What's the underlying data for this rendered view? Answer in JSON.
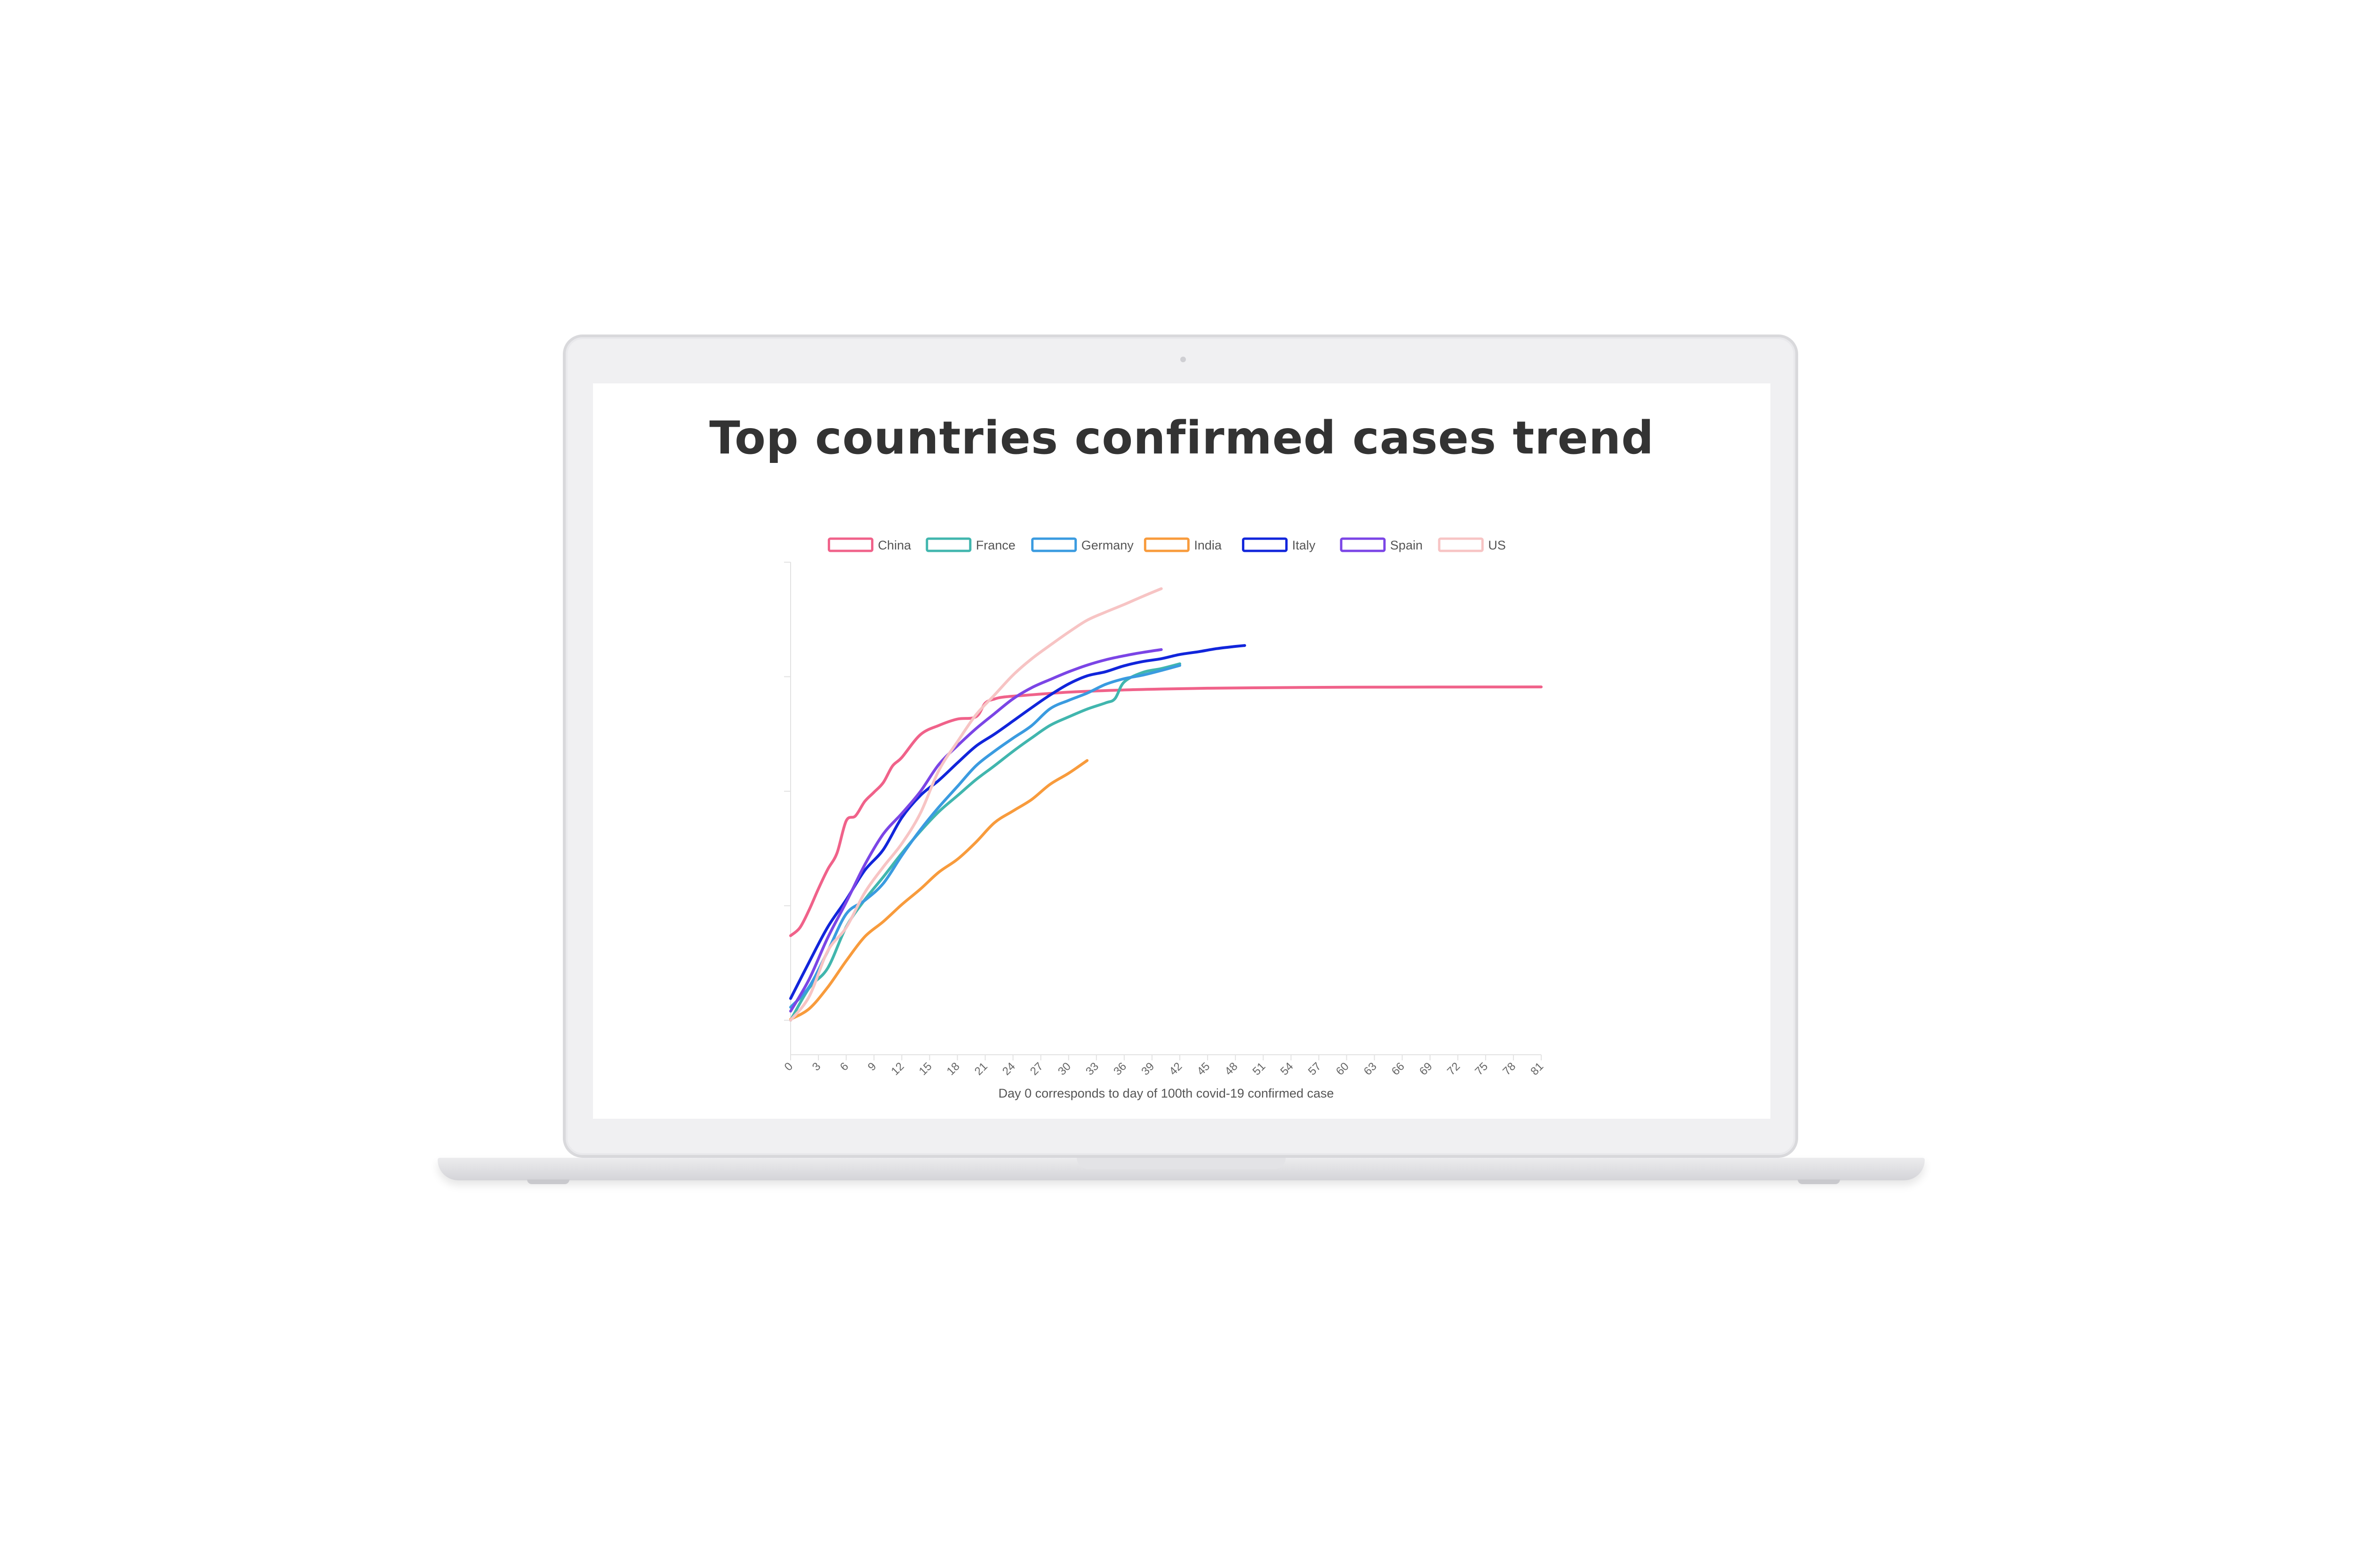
{
  "page_title": "Top countries confirmed cases trend",
  "colors": {
    "China": "#f0628a",
    "France": "#41b6ae",
    "Germany": "#3a9be0",
    "India": "#f89b3c",
    "Italy": "#1125db",
    "Spain": "#7b45e6",
    "US": "#f7c4c4"
  },
  "chart_data": {
    "type": "line",
    "title": "",
    "xlabel": "Day 0 corresponds to day of 100th covid-19 confirmed case",
    "ylabel": "",
    "y_scale": "log",
    "xlim": [
      0,
      81
    ],
    "ylim": [
      50,
      1000000
    ],
    "x_ticks": [
      0,
      3,
      6,
      9,
      12,
      15,
      18,
      21,
      24,
      27,
      30,
      33,
      36,
      39,
      42,
      45,
      48,
      51,
      54,
      57,
      60,
      63,
      66,
      69,
      72,
      75,
      78,
      81
    ],
    "legend_position": "top",
    "grid": false,
    "series": [
      {
        "name": "China",
        "x": [
          0,
          1,
          2,
          3,
          4,
          5,
          6,
          7,
          8,
          9,
          10,
          11,
          12,
          14,
          16,
          18,
          20,
          21,
          22,
          23,
          25,
          30,
          35,
          40,
          45,
          50,
          55,
          60,
          65,
          70,
          75,
          81
        ],
        "y": [
          548,
          643,
          920,
          1406,
          2075,
          2877,
          5509,
          6087,
          8141,
          9802,
          11891,
          16630,
          19716,
          31161,
          37552,
          42638,
          44653,
          58761,
          63851,
          66492,
          68500,
          73258,
          76206,
          78065,
          79356,
          80026,
          80556,
          80894,
          81099,
          81218,
          81340,
          81460
        ]
      },
      {
        "name": "France",
        "x": [
          0,
          2,
          4,
          6,
          8,
          10,
          12,
          14,
          16,
          18,
          20,
          22,
          24,
          26,
          28,
          30,
          32,
          34,
          35,
          36,
          38,
          40,
          42
        ],
        "y": [
          100,
          191,
          285,
          653,
          1126,
          1784,
          2876,
          4469,
          6633,
          9134,
          12612,
          16689,
          22302,
          29155,
          37575,
          44550,
          52128,
          59105,
          64338,
          89953,
          109069,
          117749,
          129654
        ]
      },
      {
        "name": "Germany",
        "x": [
          0,
          2,
          4,
          6,
          8,
          10,
          12,
          14,
          16,
          18,
          20,
          22,
          24,
          26,
          28,
          30,
          32,
          34,
          36,
          38,
          40,
          42
        ],
        "y": [
          130,
          196,
          400,
          847,
          1112,
          1565,
          2745,
          4599,
          7272,
          10999,
          16662,
          22364,
          29056,
          37323,
          52547,
          62095,
          71808,
          85778,
          96092,
          103228,
          113296,
          125452
        ]
      },
      {
        "name": "India",
        "x": [
          0,
          2,
          4,
          6,
          8,
          10,
          12,
          14,
          16,
          18,
          20,
          22,
          24,
          26,
          28,
          30,
          32
        ],
        "y": [
          102,
          126,
          194,
          330,
          536,
          727,
          1024,
          1397,
          1965,
          2543,
          3588,
          5311,
          6725,
          8446,
          11487,
          14352,
          18539
        ]
      },
      {
        "name": "Italy",
        "x": [
          0,
          2,
          4,
          6,
          8,
          10,
          12,
          14,
          16,
          18,
          20,
          22,
          24,
          26,
          28,
          30,
          32,
          34,
          36,
          38,
          40,
          42,
          44,
          46,
          48,
          49
        ],
        "y": [
          155,
          322,
          650,
          1128,
          2036,
          3089,
          5883,
          9172,
          12462,
          17660,
          24747,
          31506,
          41035,
          53578,
          69176,
          86498,
          101739,
          110574,
          124632,
          135586,
          143626,
          156363,
          165155,
          175925,
          183957,
          187327
        ]
      },
      {
        "name": "Spain",
        "x": [
          0,
          2,
          4,
          6,
          8,
          10,
          12,
          14,
          16,
          18,
          20,
          22,
          24,
          26,
          28,
          30,
          32,
          34,
          36,
          38,
          40
        ],
        "y": [
          120,
          228,
          525,
          1073,
          2277,
          4231,
          6391,
          9942,
          17147,
          24926,
          35136,
          47610,
          64059,
          80110,
          94417,
          110238,
          126168,
          140510,
          152446,
          163027,
          172541
        ]
      },
      {
        "name": "US",
        "x": [
          0,
          2,
          4,
          6,
          8,
          10,
          12,
          14,
          16,
          18,
          20,
          22,
          24,
          26,
          28,
          30,
          32,
          34,
          36,
          38,
          40
        ],
        "y": [
          100,
          161,
          402,
          644,
          1301,
          2179,
          3487,
          6421,
          15219,
          27017,
          46450,
          69194,
          103321,
          143055,
          188172,
          244678,
          311357,
          367004,
          427460,
          502876,
          587155
        ]
      }
    ]
  }
}
